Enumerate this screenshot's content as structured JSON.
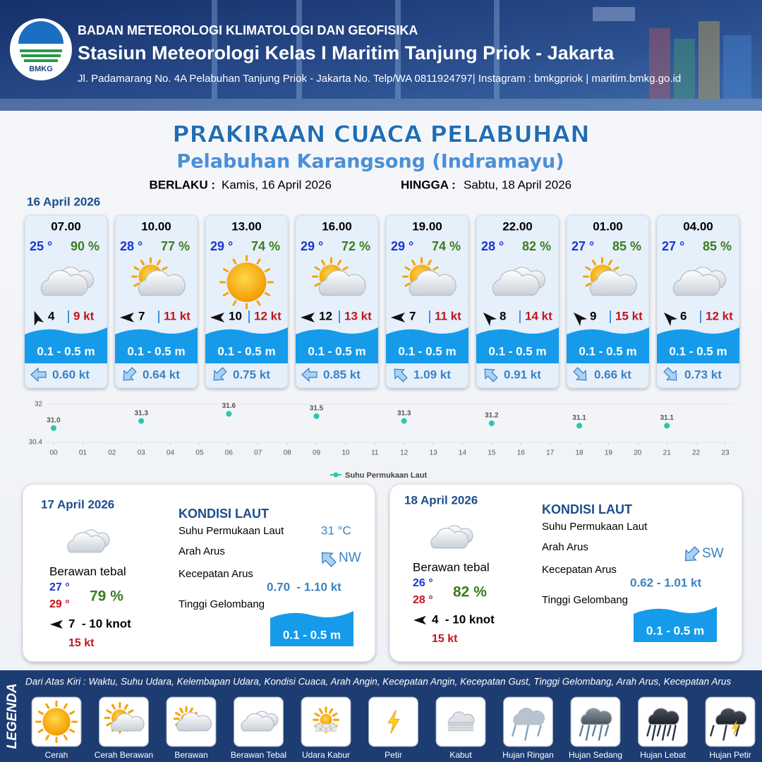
{
  "header": {
    "logo_text": "BMKG",
    "agency": "BADAN METEOROLOGI KLIMATOLOGI DAN GEOFISIKA",
    "station": "Stasiun Meteorologi Kelas I Maritim Tanjung Priok - Jakarta",
    "address": "Jl. Padamarang No. 4A Pelabuhan Tanjung Priok - Jakarta No. Telp/WA 0811924797| Instagram : bmkgpriok | maritim.bmkg.go.id"
  },
  "title": "PRAKIRAAN CUACA PELABUHAN",
  "subtitle": "Pelabuhan Karangsong (Indramayu)",
  "validity": {
    "from_label": "BERLAKU :",
    "from": "Kamis, 16 April 2026",
    "to_label": "HINGGA :",
    "to": "Sabtu, 18 April 2026"
  },
  "day1_date": "16 April 2026",
  "forecasts": [
    {
      "time": "07.00",
      "temp": "25 °",
      "humidity": "90 %",
      "wind": "4",
      "gust": "9 kt",
      "wave": "0.1 - 0.5 m",
      "current": "0.60 kt"
    },
    {
      "time": "10.00",
      "temp": "28 °",
      "humidity": "77 %",
      "wind": "7",
      "gust": "11 kt",
      "wave": "0.1 - 0.5 m",
      "current": "0.64 kt"
    },
    {
      "time": "13.00",
      "temp": "29 °",
      "humidity": "74 %",
      "wind": "10",
      "gust": "12 kt",
      "wave": "0.1 - 0.5 m",
      "current": "0.75 kt"
    },
    {
      "time": "16.00",
      "temp": "29 °",
      "humidity": "72 %",
      "wind": "12",
      "gust": "13 kt",
      "wave": "0.1 - 0.5 m",
      "current": "0.85 kt"
    },
    {
      "time": "19.00",
      "temp": "29 °",
      "humidity": "74 %",
      "wind": "7",
      "gust": "11 kt",
      "wave": "0.1 - 0.5 m",
      "current": "1.09 kt"
    },
    {
      "time": "22.00",
      "temp": "28 °",
      "humidity": "82 %",
      "wind": "8",
      "gust": "14 kt",
      "wave": "0.1 - 0.5 m",
      "current": "0.91 kt"
    },
    {
      "time": "01.00",
      "temp": "27 °",
      "humidity": "85 %",
      "wind": "9",
      "gust": "15 kt",
      "wave": "0.1 - 0.5 m",
      "current": "0.66 kt"
    },
    {
      "time": "04.00",
      "temp": "27 °",
      "humidity": "85 %",
      "wind": "6",
      "gust": "12 kt",
      "wave": "0.1 - 0.5 m",
      "current": "0.73 kt"
    }
  ],
  "chart_data": {
    "type": "scatter",
    "series": [
      {
        "name": "Suhu Permukaan Laut",
        "color": "#2ec4b0",
        "x": [
          0,
          3,
          6,
          9,
          12,
          15,
          18,
          21
        ],
        "values": [
          31.0,
          31.3,
          31.6,
          31.5,
          31.3,
          31.2,
          31.1,
          31.1
        ],
        "value_labels": [
          "31.0",
          "31.3",
          "31.6",
          "31.5",
          "31.3",
          "31.2",
          "31.1",
          "31.1"
        ]
      }
    ],
    "xlim": [
      0,
      23
    ],
    "xticks": [
      {
        "value": 0,
        "label": "00"
      },
      {
        "value": 1,
        "label": "01"
      },
      {
        "value": 2,
        "label": "02"
      },
      {
        "value": 3,
        "label": "03"
      },
      {
        "value": 4,
        "label": "04"
      },
      {
        "value": 5,
        "label": "05"
      },
      {
        "value": 6,
        "label": "06"
      },
      {
        "value": 7,
        "label": "07"
      },
      {
        "value": 8,
        "label": "08"
      },
      {
        "value": 9,
        "label": "09"
      },
      10,
      11,
      12,
      13,
      14,
      15,
      16,
      17,
      18,
      19,
      20,
      21,
      22,
      23
    ],
    "ylim": [
      30.4,
      32
    ],
    "yticks": [
      30.4,
      32
    ],
    "grid": true
  },
  "days": [
    {
      "date": "17 April 2026",
      "condition": "Berawan tebal",
      "temp_min": "27 °",
      "temp_max": "29 °",
      "humidity": "79 %",
      "wind": "7  - 10 knot",
      "gust": "15 kt",
      "sea_title": "KONDISI LAUT",
      "sst_label": "Suhu Permukaan Laut",
      "sst": "31 °C",
      "direction_label": "Arah Arus",
      "direction": "NW",
      "speed_label": "Kecepatan Arus",
      "speed": "0.70  - 1.10 kt",
      "wave_label": "Tinggi Gelombang",
      "wave": "0.1 - 0.5 m"
    },
    {
      "date": "18 April 2026",
      "condition": "Berawan tebal",
      "temp_min": "26 °",
      "temp_max": "28 °",
      "humidity": "82 %",
      "wind": "4  - 10 knot",
      "gust": "15 kt",
      "sea_title": "KONDISI LAUT",
      "sst_label": "Suhu Permukaan Laut",
      "direction_label": "Arah Arus",
      "direction": "SW",
      "speed_label": "Kecepatan Arus",
      "speed": "0.62 - 1.01 kt",
      "wave_label": "Tinggi Gelombang",
      "wave": "0.1 - 0.5 m"
    }
  ],
  "legend": {
    "title": "LEGENDA",
    "description": "Dari Atas Kiri : Waktu, Suhu Udara, Kelembapan Udara, Kondisi Cuaca, Arah Angin, Kecepatan Angin, Kecepatan Gust, Tinggi Gelombang, Arah Arus, Kecepatan Arus",
    "items": [
      "Cerah",
      "Cerah Berawan",
      "Berawan",
      "Berawan Tebal",
      "Udara Kabur",
      "Petir",
      "Kabut",
      "Hujan Ringan",
      "Hujan Sedang",
      "Hujan Lebat",
      "Hujan Petir"
    ]
  }
}
